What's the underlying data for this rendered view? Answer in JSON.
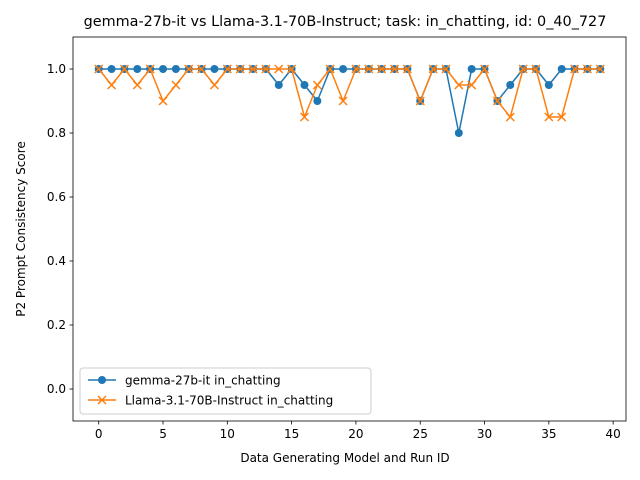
{
  "chart_data": {
    "type": "line",
    "title": "gemma-27b-it vs Llama-3.1-70B-Instruct; task: in_chatting, id: 0_40_727",
    "xlabel": "Data Generating Model and Run ID",
    "ylabel": "P2 Prompt Consistency Score",
    "xlim": [
      -2,
      41
    ],
    "ylim": [
      -0.1,
      1.1
    ],
    "xticks": [
      0,
      5,
      10,
      15,
      20,
      25,
      30,
      35,
      40
    ],
    "yticks": [
      0.0,
      0.2,
      0.4,
      0.6,
      0.8,
      1.0
    ],
    "xtick_labels": [
      "0",
      "5",
      "10",
      "15",
      "20",
      "25",
      "30",
      "35",
      "40"
    ],
    "ytick_labels": [
      "0.0",
      "0.2",
      "0.4",
      "0.6",
      "0.8",
      "1.0"
    ],
    "grid": false,
    "legend_position": "lower-left",
    "x": [
      0,
      1,
      2,
      3,
      4,
      5,
      6,
      7,
      8,
      9,
      10,
      11,
      12,
      13,
      14,
      15,
      16,
      17,
      18,
      19,
      20,
      21,
      22,
      23,
      24,
      25,
      26,
      27,
      28,
      29,
      30,
      31,
      32,
      33,
      34,
      35,
      36,
      37,
      38,
      39
    ],
    "series": [
      {
        "name": "gemma-27b-it in_chatting",
        "color": "#1f77b4",
        "marker": "circle",
        "values": [
          1.0,
          1.0,
          1.0,
          1.0,
          1.0,
          1.0,
          1.0,
          1.0,
          1.0,
          1.0,
          1.0,
          1.0,
          1.0,
          1.0,
          0.95,
          1.0,
          0.95,
          0.9,
          1.0,
          1.0,
          1.0,
          1.0,
          1.0,
          1.0,
          1.0,
          0.9,
          1.0,
          1.0,
          0.8,
          1.0,
          1.0,
          0.9,
          0.95,
          1.0,
          1.0,
          0.95,
          1.0,
          1.0,
          1.0,
          1.0
        ]
      },
      {
        "name": "Llama-3.1-70B-Instruct in_chatting",
        "color": "#ff7f0e",
        "marker": "x",
        "values": [
          1.0,
          0.95,
          1.0,
          0.95,
          1.0,
          0.9,
          0.95,
          1.0,
          1.0,
          0.95,
          1.0,
          1.0,
          1.0,
          1.0,
          1.0,
          1.0,
          0.85,
          0.95,
          1.0,
          0.9,
          1.0,
          1.0,
          1.0,
          1.0,
          1.0,
          0.9,
          1.0,
          1.0,
          0.95,
          0.95,
          1.0,
          0.9,
          0.85,
          1.0,
          1.0,
          0.85,
          0.85,
          1.0,
          1.0,
          1.0
        ]
      }
    ]
  }
}
